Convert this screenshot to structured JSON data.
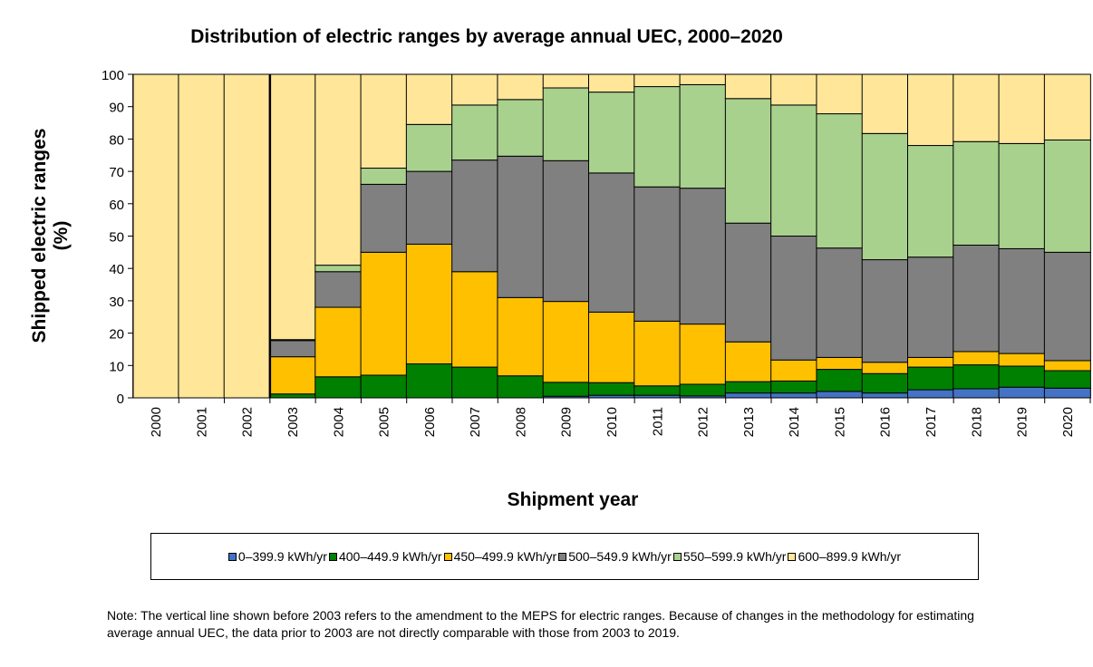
{
  "chart_data": {
    "type": "bar",
    "stacked": true,
    "title": "Distribution of electric ranges by average annual UEC, 2000–2020",
    "xlabel": "Shipment year",
    "ylabel": "Shipped electric ranges (%)",
    "ylim": [
      0,
      100
    ],
    "yticks": [
      0,
      10,
      20,
      30,
      40,
      50,
      60,
      70,
      80,
      90,
      100
    ],
    "categories": [
      "2000",
      "2001",
      "2002",
      "2003",
      "2004",
      "2005",
      "2006",
      "2007",
      "2008",
      "2009",
      "2010",
      "2011",
      "2012",
      "2013",
      "2014",
      "2015",
      "2016",
      "2017",
      "2018",
      "2019",
      "2020"
    ],
    "vertical_line_before": "2003",
    "legend_position": "bottom",
    "series": [
      {
        "name": "0–399.9 kWh/yr",
        "color": "#4472C4",
        "values": [
          0,
          0,
          0,
          0,
          0,
          0,
          0,
          0,
          0,
          0.5,
          0.8,
          0.8,
          0.6,
          1.5,
          1.5,
          2,
          1.5,
          2.5,
          2.8,
          3.3,
          3
        ]
      },
      {
        "name": "400–449.9 kWh/yr",
        "color": "#008000",
        "values": [
          0,
          0,
          0,
          1.2,
          6.5,
          7,
          10.5,
          9.5,
          6.8,
          4.3,
          3.9,
          2.9,
          3.6,
          3.5,
          3.7,
          6.8,
          6,
          7,
          7.4,
          6.5,
          5.4
        ]
      },
      {
        "name": "450–499.9 kWh/yr",
        "color": "#FFC000",
        "values": [
          0,
          0,
          0,
          11.5,
          21.5,
          38,
          37,
          29.5,
          24.2,
          25,
          21.8,
          20,
          18.6,
          12.3,
          6.5,
          3.7,
          3.5,
          3,
          4.1,
          3.9,
          3.1
        ]
      },
      {
        "name": "500–549.9 kWh/yr",
        "color": "#808080",
        "values": [
          0,
          0,
          0,
          5,
          11,
          21,
          22.5,
          34.5,
          43.7,
          43.5,
          43,
          41.5,
          42,
          36.7,
          38.3,
          33.8,
          31.7,
          31,
          32.9,
          32.4,
          33.5
        ]
      },
      {
        "name": "550–599.9 kWh/yr",
        "color": "#A9D18E",
        "values": [
          0,
          0,
          0,
          0.3,
          2,
          5,
          14.5,
          17,
          17.5,
          22.5,
          25,
          31,
          32,
          38.5,
          40.5,
          41.5,
          39,
          34.5,
          32,
          32.5,
          34.7
        ]
      },
      {
        "name": "600–899.9 kWh/yr",
        "color": "#FFE699",
        "values": [
          100,
          100,
          100,
          82,
          59,
          29,
          15.5,
          9.5,
          7.8,
          4.2,
          5.5,
          3.8,
          3.2,
          7.5,
          9.5,
          12.2,
          18.3,
          22,
          20.8,
          21.4,
          20.3
        ]
      }
    ]
  },
  "note": "Note: The vertical line shown before 2003 refers to the amendment to the MEPS for electric ranges. Because of changes in the methodology for estimating average annual UEC, the data prior to 2003 are not directly comparable with those from 2003 to 2019."
}
